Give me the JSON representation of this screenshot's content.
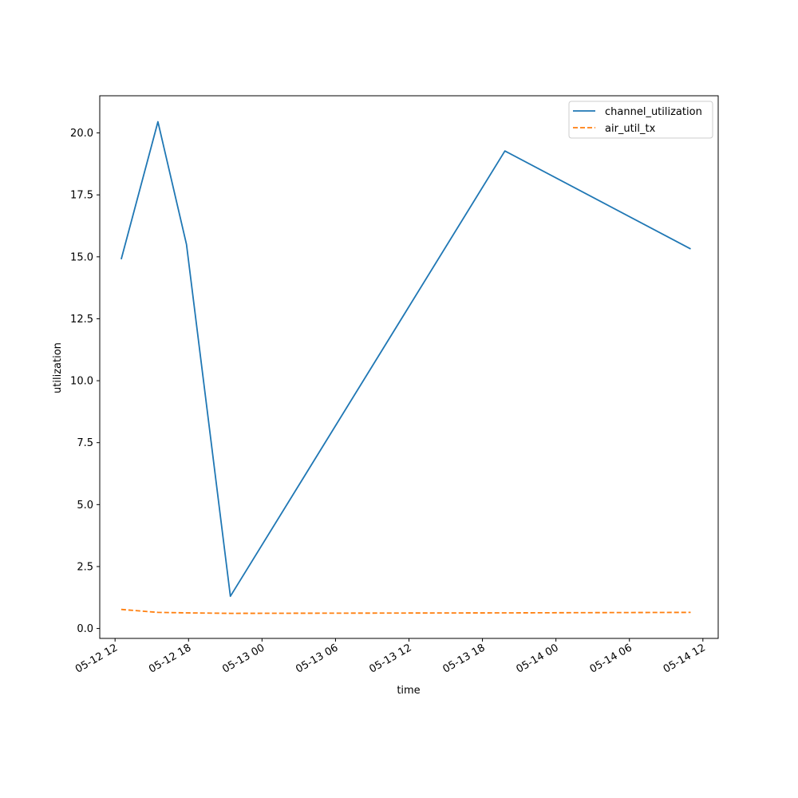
{
  "chart_data": {
    "type": "line",
    "xlabel": "time",
    "ylabel": "utilization",
    "xlim": [
      "2024-05-12 10:45",
      "2024-05-14 13:15"
    ],
    "ylim": [
      -0.4,
      21.5
    ],
    "grid": false,
    "legend_position": "top-right",
    "x_ticks": [
      {
        "value": "2024-05-12 12:00",
        "label": "05-12 12"
      },
      {
        "value": "2024-05-12 18:00",
        "label": "05-12 18"
      },
      {
        "value": "2024-05-13 00:00",
        "label": "05-13 00"
      },
      {
        "value": "2024-05-13 06:00",
        "label": "05-13 06"
      },
      {
        "value": "2024-05-13 12:00",
        "label": "05-13 12"
      },
      {
        "value": "2024-05-13 18:00",
        "label": "05-13 18"
      },
      {
        "value": "2024-05-14 00:00",
        "label": "05-14 00"
      },
      {
        "value": "2024-05-14 06:00",
        "label": "05-14 06"
      },
      {
        "value": "2024-05-14 12:00",
        "label": "05-14 12"
      }
    ],
    "y_ticks": [
      {
        "value": 0,
        "label": "0.0"
      },
      {
        "value": 2.5,
        "label": "2.5"
      },
      {
        "value": 5,
        "label": "5.0"
      },
      {
        "value": 7.5,
        "label": "7.5"
      },
      {
        "value": 10,
        "label": "10.0"
      },
      {
        "value": 12.5,
        "label": "12.5"
      },
      {
        "value": 15,
        "label": "15.0"
      },
      {
        "value": 17.5,
        "label": "17.5"
      },
      {
        "value": 20,
        "label": "20.0"
      }
    ],
    "series": [
      {
        "name": "channel_utilization",
        "color": "#1f77b4",
        "style": "solid",
        "points": [
          {
            "x": "2024-05-12 12:30",
            "y": 14.9
          },
          {
            "x": "2024-05-12 15:30",
            "y": 20.45
          },
          {
            "x": "2024-05-12 17:50",
            "y": 15.5
          },
          {
            "x": "2024-05-12 21:25",
            "y": 1.3
          },
          {
            "x": "2024-05-13 19:50",
            "y": 19.27
          },
          {
            "x": "2024-05-14 11:00",
            "y": 15.32
          }
        ]
      },
      {
        "name": "air_util_tx",
        "color": "#ff7f0e",
        "style": "dashed",
        "points": [
          {
            "x": "2024-05-12 12:30",
            "y": 0.77
          },
          {
            "x": "2024-05-12 15:30",
            "y": 0.65
          },
          {
            "x": "2024-05-12 17:50",
            "y": 0.63
          },
          {
            "x": "2024-05-12 21:25",
            "y": 0.61
          },
          {
            "x": "2024-05-13 19:50",
            "y": 0.63
          },
          {
            "x": "2024-05-14 11:00",
            "y": 0.65
          }
        ]
      }
    ]
  }
}
